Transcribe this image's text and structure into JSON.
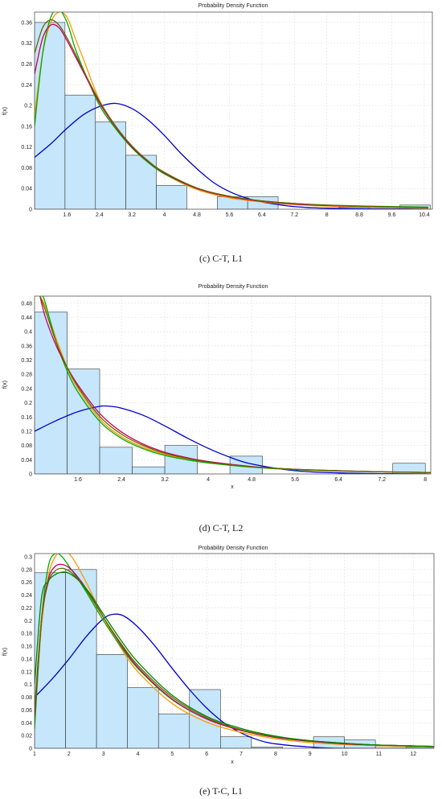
{
  "chart_data": [
    {
      "type": "bar",
      "title": "Probability Density Function",
      "xlabel": "",
      "ylabel": "f(x)",
      "caption": "(c) C-T, L1",
      "xlim": [
        0.8,
        10.6
      ],
      "ylim": [
        0,
        0.38
      ],
      "xticks": [
        1.6,
        2.4,
        3.2,
        4,
        4.8,
        5.6,
        6.4,
        7.2,
        8,
        8.8,
        9.6,
        10.4
      ],
      "xtick_labels": [
        "1.6",
        "2.4",
        "3.2",
        "4",
        "4.8",
        "5.6",
        "6.4",
        "7.2",
        "8",
        "8.8",
        "9.6",
        "10.4"
      ],
      "yticks": [
        0,
        0.04,
        0.08,
        0.12,
        0.16,
        0.2,
        0.24,
        0.28,
        0.32,
        0.36
      ],
      "ytick_labels": [
        "0",
        "0.04",
        "0.08",
        "0.12",
        "0.16",
        "0.2",
        "0.24",
        "0.28",
        "0.32",
        "0.36"
      ],
      "grid": true,
      "bins": [
        {
          "x0": 0.8,
          "x1": 1.55,
          "value": 0.36
        },
        {
          "x0": 1.55,
          "x1": 2.3,
          "value": 0.22
        },
        {
          "x0": 2.3,
          "x1": 3.05,
          "value": 0.168
        },
        {
          "x0": 3.05,
          "x1": 3.8,
          "value": 0.104
        },
        {
          "x0": 3.8,
          "x1": 4.55,
          "value": 0.046
        },
        {
          "x0": 4.55,
          "x1": 5.3,
          "value": 0.0
        },
        {
          "x0": 5.3,
          "x1": 6.05,
          "value": 0.024
        },
        {
          "x0": 6.05,
          "x1": 6.8,
          "value": 0.024
        },
        {
          "x0": 6.8,
          "x1": 7.55,
          "value": 0.0
        },
        {
          "x0": 7.55,
          "x1": 8.3,
          "value": 0.0
        },
        {
          "x0": 8.3,
          "x1": 9.05,
          "value": 0.004
        },
        {
          "x0": 9.05,
          "x1": 9.8,
          "value": 0.0
        },
        {
          "x0": 9.8,
          "x1": 10.55,
          "value": 0.008
        }
      ],
      "series": [
        {
          "color": "#0000cc",
          "x": [
            0.8,
            1.2,
            1.6,
            2.0,
            2.4,
            2.8,
            3.2,
            3.6,
            4.0,
            4.4,
            4.8,
            5.2,
            5.6,
            6.0,
            6.4,
            6.8,
            7.2,
            7.6,
            8.0,
            9.0,
            10.5
          ],
          "y": [
            0.1,
            0.126,
            0.156,
            0.182,
            0.198,
            0.204,
            0.194,
            0.172,
            0.142,
            0.108,
            0.078,
            0.052,
            0.034,
            0.022,
            0.014,
            0.009,
            0.005,
            0.003,
            0.002,
            0.001,
            0.0
          ]
        },
        {
          "color": "#ff9900",
          "x": [
            0.8,
            1.0,
            1.2,
            1.4,
            1.6,
            1.8,
            2.0,
            2.4,
            2.8,
            3.2,
            3.6,
            4.0,
            4.8,
            5.6,
            6.4,
            7.2,
            8.0,
            9.0,
            10.5
          ],
          "y": [
            0.18,
            0.3,
            0.36,
            0.38,
            0.37,
            0.33,
            0.29,
            0.21,
            0.16,
            0.12,
            0.092,
            0.068,
            0.038,
            0.022,
            0.014,
            0.009,
            0.006,
            0.004,
            0.002
          ]
        },
        {
          "color": "#00aa00",
          "x": [
            0.8,
            1.0,
            1.2,
            1.4,
            1.6,
            1.8,
            2.0,
            2.4,
            2.8,
            3.2,
            3.6,
            4.0,
            4.8,
            5.6,
            6.4,
            7.2,
            8.0,
            9.0,
            10.5
          ],
          "y": [
            0.16,
            0.3,
            0.37,
            0.385,
            0.36,
            0.31,
            0.27,
            0.2,
            0.155,
            0.118,
            0.09,
            0.068,
            0.04,
            0.025,
            0.016,
            0.011,
            0.008,
            0.006,
            0.004
          ]
        },
        {
          "color": "#cc0066",
          "x": [
            0.8,
            1.0,
            1.2,
            1.4,
            1.6,
            1.8,
            2.0,
            2.4,
            2.8,
            3.2,
            3.6,
            4.0,
            4.8,
            5.6,
            6.4,
            7.2,
            8.0,
            9.0,
            10.5
          ],
          "y": [
            0.26,
            0.33,
            0.355,
            0.35,
            0.325,
            0.295,
            0.265,
            0.205,
            0.158,
            0.12,
            0.092,
            0.07,
            0.04,
            0.024,
            0.015,
            0.01,
            0.007,
            0.005,
            0.003
          ]
        },
        {
          "color": "#666600",
          "x": [
            0.8,
            1.0,
            1.2,
            1.4,
            1.6,
            1.8,
            2.0,
            2.4,
            2.8,
            3.2,
            3.6,
            4.0,
            4.8,
            5.6,
            6.4,
            7.2,
            8.0,
            9.0,
            10.5
          ],
          "y": [
            0.3,
            0.35,
            0.365,
            0.355,
            0.33,
            0.3,
            0.268,
            0.208,
            0.16,
            0.122,
            0.093,
            0.071,
            0.041,
            0.025,
            0.016,
            0.011,
            0.008,
            0.005,
            0.003
          ]
        }
      ]
    },
    {
      "type": "bar",
      "title": "Probability Density Function",
      "xlabel": "x",
      "ylabel": "f(x)",
      "caption": "(d) C-T, L2",
      "xlim": [
        0.8,
        8.1
      ],
      "ylim": [
        0,
        0.5
      ],
      "xticks": [
        1.6,
        2.4,
        3.2,
        4,
        4.8,
        5.6,
        6.4,
        7.2,
        8
      ],
      "xtick_labels": [
        "1.6",
        "2.4",
        "3.2",
        "4",
        "4.8",
        "5.6",
        "6.4",
        "7.2",
        "8"
      ],
      "yticks": [
        0,
        0.04,
        0.08,
        0.12,
        0.16,
        0.2,
        0.24,
        0.28,
        0.32,
        0.36,
        0.4,
        0.44,
        0.48
      ],
      "ytick_labels": [
        "0",
        "0.04",
        "0.08",
        "0.12",
        "0.16",
        "0.2",
        "0.24",
        "0.28",
        "0.32",
        "0.36",
        "0.4",
        "0.44",
        "0.48"
      ],
      "grid": true,
      "bins": [
        {
          "x0": 0.8,
          "x1": 1.4,
          "value": 0.455
        },
        {
          "x0": 1.4,
          "x1": 2.0,
          "value": 0.295
        },
        {
          "x0": 2.0,
          "x1": 2.6,
          "value": 0.075
        },
        {
          "x0": 2.6,
          "x1": 3.2,
          "value": 0.02
        },
        {
          "x0": 3.2,
          "x1": 3.8,
          "value": 0.08
        },
        {
          "x0": 3.8,
          "x1": 4.4,
          "value": 0.0
        },
        {
          "x0": 4.4,
          "x1": 5.0,
          "value": 0.05
        },
        {
          "x0": 5.0,
          "x1": 5.6,
          "value": 0.0
        },
        {
          "x0": 5.6,
          "x1": 6.2,
          "value": 0.0
        },
        {
          "x0": 6.2,
          "x1": 6.8,
          "value": 0.0
        },
        {
          "x0": 6.8,
          "x1": 7.4,
          "value": 0.0
        },
        {
          "x0": 7.4,
          "x1": 8.0,
          "value": 0.03
        }
      ],
      "series": [
        {
          "color": "#0000cc",
          "x": [
            0.8,
            1.2,
            1.6,
            2.0,
            2.2,
            2.4,
            2.8,
            3.2,
            3.6,
            4.0,
            4.4,
            4.8,
            5.6,
            6.4,
            7.2,
            8.1
          ],
          "y": [
            0.12,
            0.15,
            0.175,
            0.19,
            0.19,
            0.185,
            0.165,
            0.135,
            0.102,
            0.072,
            0.047,
            0.028,
            0.009,
            0.003,
            0.001,
            0.0
          ]
        },
        {
          "color": "#ff9900",
          "x": [
            0.9,
            1.0,
            1.2,
            1.4,
            1.6,
            2.0,
            2.4,
            2.8,
            3.2,
            3.6,
            4.0,
            4.8,
            5.6,
            6.4,
            7.2,
            8.1
          ],
          "y": [
            0.5,
            0.47,
            0.38,
            0.3,
            0.24,
            0.155,
            0.105,
            0.075,
            0.055,
            0.042,
            0.032,
            0.02,
            0.013,
            0.009,
            0.006,
            0.004
          ]
        },
        {
          "color": "#00aa00",
          "x": [
            0.95,
            1.0,
            1.2,
            1.4,
            1.6,
            2.0,
            2.4,
            2.8,
            3.2,
            3.6,
            4.0,
            4.8,
            5.6,
            6.4,
            7.2,
            8.1
          ],
          "y": [
            0.5,
            0.48,
            0.37,
            0.29,
            0.23,
            0.148,
            0.1,
            0.071,
            0.052,
            0.04,
            0.031,
            0.019,
            0.012,
            0.008,
            0.006,
            0.004
          ]
        },
        {
          "color": "#cc0066",
          "x": [
            0.9,
            1.0,
            1.2,
            1.4,
            1.6,
            2.0,
            2.4,
            2.8,
            3.2,
            3.6,
            4.0,
            4.8,
            5.6,
            6.4,
            7.2,
            8.1
          ],
          "y": [
            0.5,
            0.44,
            0.36,
            0.3,
            0.25,
            0.17,
            0.118,
            0.084,
            0.061,
            0.046,
            0.035,
            0.021,
            0.013,
            0.009,
            0.006,
            0.004
          ]
        },
        {
          "color": "#666600",
          "x": [
            0.9,
            1.0,
            1.2,
            1.4,
            1.6,
            2.0,
            2.4,
            2.8,
            3.2,
            3.6,
            4.0,
            4.8,
            5.6,
            6.4,
            7.2,
            8.1
          ],
          "y": [
            0.5,
            0.46,
            0.37,
            0.3,
            0.245,
            0.162,
            0.112,
            0.08,
            0.058,
            0.044,
            0.033,
            0.02,
            0.013,
            0.009,
            0.006,
            0.004
          ]
        }
      ]
    },
    {
      "type": "bar",
      "title": "Probability Density Function",
      "xlabel": "x",
      "ylabel": "f(x)",
      "caption": "(e) T-C, L1",
      "xlim": [
        1,
        12.6
      ],
      "ylim": [
        0,
        0.305
      ],
      "xticks": [
        1,
        2,
        3,
        4,
        5,
        6,
        7,
        8,
        9,
        10,
        11,
        12
      ],
      "xtick_labels": [
        "1",
        "2",
        "3",
        "4",
        "5",
        "6",
        "7",
        "8",
        "9",
        "10",
        "11",
        "12"
      ],
      "yticks": [
        0,
        0.02,
        0.04,
        0.06,
        0.08,
        0.1,
        0.12,
        0.14,
        0.16,
        0.18,
        0.2,
        0.22,
        0.24,
        0.26,
        0.28,
        0.3
      ],
      "ytick_labels": [
        "0",
        "0.02",
        "0.04",
        "0.06",
        "0.08",
        "0.1",
        "0.12",
        "0.14",
        "0.16",
        "0.18",
        "0.2",
        "0.22",
        "0.24",
        "0.26",
        "0.28",
        "0.3"
      ],
      "grid": true,
      "bins": [
        {
          "x0": 1.0,
          "x1": 1.9,
          "value": 0.275
        },
        {
          "x0": 1.9,
          "x1": 2.8,
          "value": 0.28
        },
        {
          "x0": 2.8,
          "x1": 3.7,
          "value": 0.147
        },
        {
          "x0": 3.7,
          "x1": 4.6,
          "value": 0.095
        },
        {
          "x0": 4.6,
          "x1": 5.5,
          "value": 0.054
        },
        {
          "x0": 5.5,
          "x1": 6.4,
          "value": 0.092
        },
        {
          "x0": 6.4,
          "x1": 7.3,
          "value": 0.018
        },
        {
          "x0": 7.3,
          "x1": 8.2,
          "value": 0.002
        },
        {
          "x0": 8.2,
          "x1": 9.1,
          "value": 0.0
        },
        {
          "x0": 9.1,
          "x1": 10.0,
          "value": 0.018
        },
        {
          "x0": 10.0,
          "x1": 10.9,
          "value": 0.013
        },
        {
          "x0": 10.9,
          "x1": 11.8,
          "value": 0.004
        },
        {
          "x0": 11.8,
          "x1": 12.6,
          "value": 0.002
        }
      ],
      "series": [
        {
          "color": "#0000cc",
          "x": [
            1.0,
            1.5,
            2.0,
            2.5,
            3.0,
            3.3,
            3.6,
            4.0,
            4.5,
            5.0,
            5.5,
            6.0,
            6.5,
            7.0,
            7.5,
            8.0,
            9.0,
            10.0,
            12.6
          ],
          "y": [
            0.08,
            0.108,
            0.14,
            0.175,
            0.203,
            0.21,
            0.207,
            0.19,
            0.16,
            0.125,
            0.092,
            0.063,
            0.04,
            0.024,
            0.013,
            0.007,
            0.002,
            0.0,
            0.0
          ]
        },
        {
          "color": "#ff9900",
          "x": [
            1.0,
            1.2,
            1.4,
            1.6,
            1.8,
            2.0,
            2.2,
            2.5,
            3.0,
            3.5,
            4.0,
            5.0,
            6.0,
            7.0,
            8.0,
            9.0,
            10.0,
            11.0,
            12.6
          ],
          "y": [
            0.04,
            0.19,
            0.27,
            0.3,
            0.31,
            0.305,
            0.29,
            0.26,
            0.205,
            0.158,
            0.12,
            0.07,
            0.041,
            0.025,
            0.015,
            0.009,
            0.006,
            0.004,
            0.002
          ]
        },
        {
          "color": "#00aa00",
          "x": [
            1.0,
            1.2,
            1.4,
            1.6,
            1.8,
            2.0,
            2.2,
            2.5,
            3.0,
            3.5,
            4.0,
            5.0,
            6.0,
            7.0,
            8.0,
            9.0,
            10.0,
            11.0,
            12.6
          ],
          "y": [
            0.03,
            0.2,
            0.285,
            0.305,
            0.3,
            0.285,
            0.27,
            0.245,
            0.2,
            0.16,
            0.125,
            0.076,
            0.046,
            0.028,
            0.017,
            0.011,
            0.007,
            0.005,
            0.003
          ]
        },
        {
          "color": "#cc0066",
          "x": [
            1.0,
            1.2,
            1.4,
            1.6,
            1.8,
            2.0,
            2.2,
            2.5,
            3.0,
            3.5,
            4.0,
            5.0,
            6.0,
            7.0,
            8.0,
            9.0,
            10.0,
            11.0,
            12.6
          ],
          "y": [
            0.05,
            0.2,
            0.265,
            0.285,
            0.288,
            0.283,
            0.272,
            0.25,
            0.205,
            0.163,
            0.127,
            0.077,
            0.046,
            0.028,
            0.017,
            0.011,
            0.007,
            0.005,
            0.003
          ]
        },
        {
          "color": "#666600",
          "x": [
            1.0,
            1.2,
            1.4,
            1.6,
            1.8,
            2.0,
            2.2,
            2.5,
            3.0,
            3.5,
            4.0,
            5.0,
            6.0,
            7.0,
            8.0,
            9.0,
            10.0,
            11.0,
            12.6
          ],
          "y": [
            0.06,
            0.2,
            0.26,
            0.278,
            0.282,
            0.278,
            0.268,
            0.248,
            0.205,
            0.165,
            0.13,
            0.08,
            0.048,
            0.029,
            0.018,
            0.012,
            0.008,
            0.005,
            0.003
          ]
        },
        {
          "color": "#008800",
          "x": [
            1.0,
            1.2,
            1.4,
            1.6,
            1.8,
            2.0,
            2.3,
            2.6,
            3.0,
            3.5,
            4.0,
            5.0,
            6.0,
            7.0,
            8.0,
            9.0,
            10.0,
            11.0,
            12.6
          ],
          "y": [
            0.1,
            0.235,
            0.262,
            0.272,
            0.276,
            0.274,
            0.262,
            0.243,
            0.21,
            0.17,
            0.135,
            0.083,
            0.05,
            0.031,
            0.019,
            0.012,
            0.008,
            0.005,
            0.003
          ]
        }
      ]
    }
  ]
}
